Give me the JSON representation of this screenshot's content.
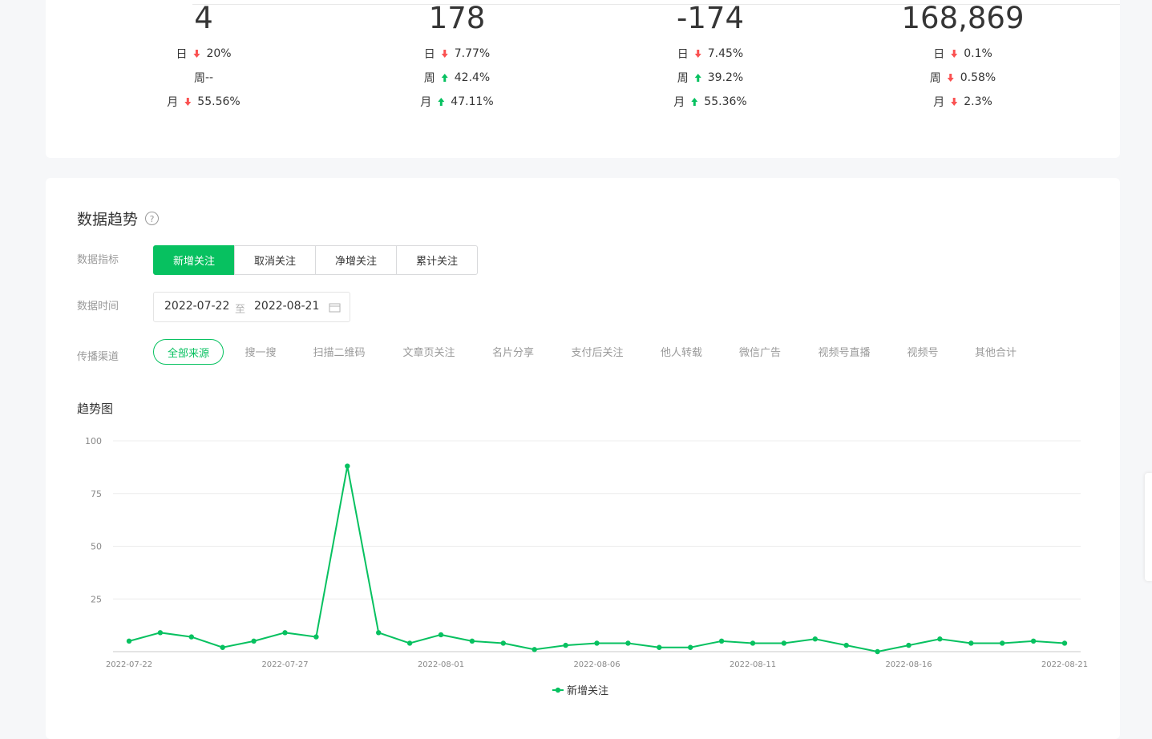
{
  "stats": [
    {
      "value": "4",
      "rows": [
        {
          "label": "日",
          "dir": "down",
          "text": "20%"
        },
        {
          "label": "周",
          "dir": null,
          "text": "--"
        },
        {
          "label": "月",
          "dir": "down",
          "text": "55.56%"
        }
      ]
    },
    {
      "value": "178",
      "rows": [
        {
          "label": "日",
          "dir": "down",
          "text": "7.77%"
        },
        {
          "label": "周",
          "dir": "up",
          "text": "42.4%"
        },
        {
          "label": "月",
          "dir": "up",
          "text": "47.11%"
        }
      ]
    },
    {
      "value": "-174",
      "rows": [
        {
          "label": "日",
          "dir": "down",
          "text": "7.45%"
        },
        {
          "label": "周",
          "dir": "up",
          "text": "39.2%"
        },
        {
          "label": "月",
          "dir": "up",
          "text": "55.36%"
        }
      ]
    },
    {
      "value": "168,869",
      "rows": [
        {
          "label": "日",
          "dir": "down",
          "text": "0.1%"
        },
        {
          "label": "周",
          "dir": "down",
          "text": "0.58%"
        },
        {
          "label": "月",
          "dir": "down",
          "text": "2.3%"
        }
      ]
    }
  ],
  "trend": {
    "title": "数据趋势",
    "metric": {
      "label": "数据指标",
      "options": [
        "新增关注",
        "取消关注",
        "净增关注",
        "累计关注"
      ],
      "active": 0
    },
    "time": {
      "label": "数据时间",
      "start": "2022-07-22",
      "separator": "至",
      "end": "2022-08-21"
    },
    "channel": {
      "label": "传播渠道",
      "options": [
        "全部来源",
        "搜一搜",
        "扫描二维码",
        "文章页关注",
        "名片分享",
        "支付后关注",
        "他人转载",
        "微信广告",
        "视频号直播",
        "视频号",
        "其他合计"
      ],
      "active": 0
    },
    "chart_title": "趋势图"
  },
  "chart_data": {
    "type": "line",
    "categories": [
      "2022-07-22",
      null,
      null,
      null,
      null,
      "2022-07-27",
      null,
      null,
      null,
      null,
      "2022-08-01",
      null,
      null,
      null,
      null,
      "2022-08-06",
      null,
      null,
      null,
      null,
      "2022-08-11",
      null,
      null,
      null,
      null,
      "2022-08-16",
      null,
      null,
      null,
      null,
      "2022-08-21"
    ],
    "series": [
      {
        "name": "新增关注",
        "color": "#07c160",
        "values": [
          5,
          9,
          7,
          2,
          5,
          9,
          7,
          88,
          9,
          4,
          8,
          5,
          4,
          1,
          3,
          4,
          4,
          2,
          2,
          5,
          4,
          4,
          6,
          3,
          0,
          3,
          6,
          4,
          4,
          5,
          4
        ]
      }
    ],
    "ylim": [
      0,
      100
    ],
    "yticks": [
      25,
      50,
      75,
      100
    ],
    "grid": true,
    "legend": "bottom"
  }
}
